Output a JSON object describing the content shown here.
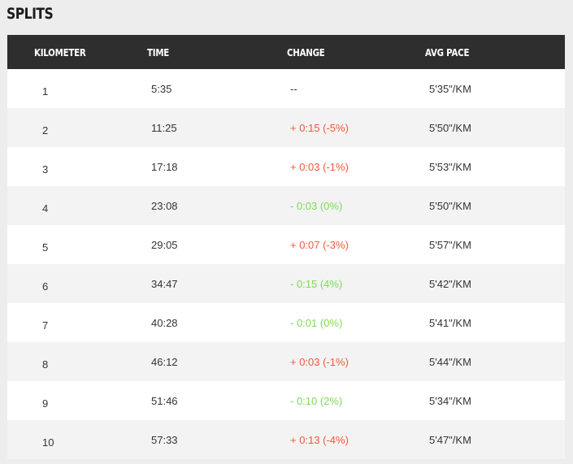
{
  "page": {
    "title": "SPLITS"
  },
  "colors": {
    "header_bg": "#2e2e2e",
    "slower": "#f2583a",
    "faster": "#7ed955"
  },
  "columns": [
    "KILOMETER",
    "TIME",
    "CHANGE",
    "AVG PACE"
  ],
  "splits": [
    {
      "km": "1",
      "time": "5:35",
      "change": "--",
      "trend": "neutral",
      "pace": "5'35\"/KM"
    },
    {
      "km": "2",
      "time": "11:25",
      "change": "+ 0:15 (-5%)",
      "trend": "up",
      "pace": "5'50\"/KM"
    },
    {
      "km": "3",
      "time": "17:18",
      "change": "+ 0:03 (-1%)",
      "trend": "up",
      "pace": "5'53\"/KM"
    },
    {
      "km": "4",
      "time": "23:08",
      "change": "- 0:03 (0%)",
      "trend": "down",
      "pace": "5'50\"/KM"
    },
    {
      "km": "5",
      "time": "29:05",
      "change": "+ 0:07 (-3%)",
      "trend": "up",
      "pace": "5'57\"/KM"
    },
    {
      "km": "6",
      "time": "34:47",
      "change": "- 0:15 (4%)",
      "trend": "down",
      "pace": "5'42\"/KM"
    },
    {
      "km": "7",
      "time": "40:28",
      "change": "- 0:01 (0%)",
      "trend": "down",
      "pace": "5'41\"/KM"
    },
    {
      "km": "8",
      "time": "46:12",
      "change": "+ 0:03 (-1%)",
      "trend": "up",
      "pace": "5'44\"/KM"
    },
    {
      "km": "9",
      "time": "51:46",
      "change": "- 0:10 (2%)",
      "trend": "down",
      "pace": "5'34\"/KM"
    },
    {
      "km": "10",
      "time": "57:33",
      "change": "+ 0:13 (-4%)",
      "trend": "up",
      "pace": "5'47\"/KM"
    }
  ]
}
